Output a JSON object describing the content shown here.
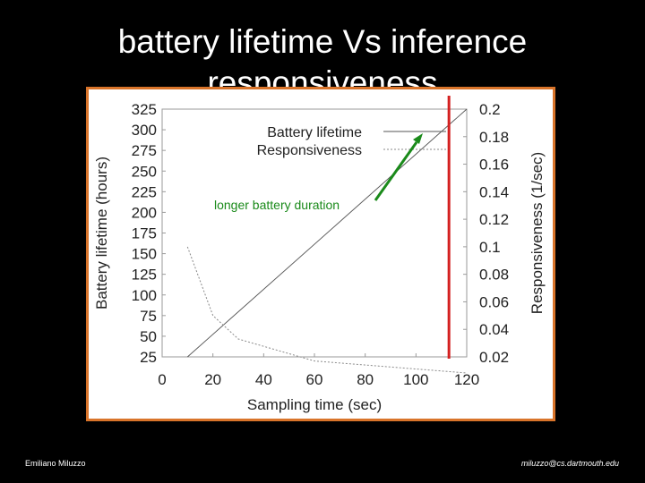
{
  "slide": {
    "title": "battery lifetime Vs inference responsiveness",
    "footer_left": "Emiliano Miluzzo",
    "footer_right": "miluzzo@cs.dartmouth.edu"
  },
  "colors": {
    "background": "#000000",
    "frame": "#d9742a",
    "marker_line": "#d42020",
    "arrow": "#1a8a1a",
    "annotation_text": "#1a8a1a"
  },
  "chart_data": {
    "type": "line",
    "xlabel": "Sampling time (sec)",
    "ylabel": "Battery lifetime (hours)",
    "y2label": "Responsiveness (1/sec)",
    "xlim": [
      0,
      120
    ],
    "ylim": [
      25,
      325
    ],
    "y2lim": [
      0.02,
      0.2
    ],
    "x_ticks": [
      "0",
      "20",
      "40",
      "60",
      "80",
      "100",
      "120"
    ],
    "y_ticks": [
      "25",
      "50",
      "75",
      "100",
      "125",
      "150",
      "175",
      "200",
      "225",
      "250",
      "275",
      "300",
      "325"
    ],
    "y2_ticks": [
      "0.02",
      "0.04",
      "0.06",
      "0.08",
      "0.1",
      "0.12",
      "0.14",
      "0.16",
      "0.18",
      "0.2"
    ],
    "legend_position": "top-center",
    "series": [
      {
        "name": "Battery lifetime",
        "axis": "left",
        "style": "solid",
        "x": [
          10,
          120
        ],
        "y": [
          25,
          325
        ]
      },
      {
        "name": "Responsiveness",
        "axis": "right",
        "style": "dotted",
        "x": [
          10,
          20,
          30,
          60,
          120
        ],
        "y": [
          0.1,
          0.05,
          0.033,
          0.017,
          0.0083
        ]
      }
    ],
    "marker_line_x": 113,
    "annotation": "longer battery duration"
  }
}
